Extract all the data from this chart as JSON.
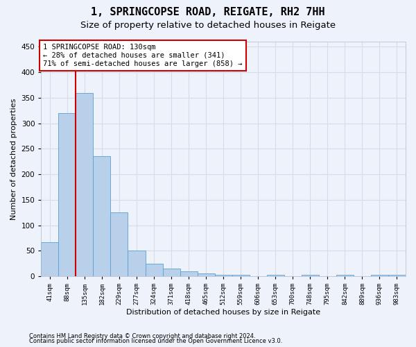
{
  "title1": "1, SPRINGCOPSE ROAD, REIGATE, RH2 7HH",
  "title2": "Size of property relative to detached houses in Reigate",
  "xlabel": "Distribution of detached houses by size in Reigate",
  "ylabel": "Number of detached properties",
  "footnote1": "Contains HM Land Registry data © Crown copyright and database right 2024.",
  "footnote2": "Contains public sector information licensed under the Open Government Licence v3.0.",
  "bar_labels": [
    "41sqm",
    "88sqm",
    "135sqm",
    "182sqm",
    "229sqm",
    "277sqm",
    "324sqm",
    "371sqm",
    "418sqm",
    "465sqm",
    "512sqm",
    "559sqm",
    "606sqm",
    "653sqm",
    "700sqm",
    "748sqm",
    "795sqm",
    "842sqm",
    "889sqm",
    "936sqm",
    "983sqm"
  ],
  "bar_values": [
    67,
    320,
    360,
    235,
    125,
    50,
    25,
    15,
    10,
    6,
    3,
    3,
    0,
    3,
    0,
    3,
    0,
    3,
    0,
    3,
    3
  ],
  "bar_color": "#b8d0ea",
  "bar_edge_color": "#5a9fd4",
  "bar_width": 1.0,
  "vline_x_idx": 2,
  "vline_color": "#cc0000",
  "vline_linewidth": 1.5,
  "annotation_text1": "1 SPRINGCOPSE ROAD: 130sqm",
  "annotation_text2": "← 28% of detached houses are smaller (341)",
  "annotation_text3": "71% of semi-detached houses are larger (858) →",
  "annotation_box_color": "#cc0000",
  "ylim": [
    0,
    460
  ],
  "yticks": [
    0,
    50,
    100,
    150,
    200,
    250,
    300,
    350,
    400,
    450
  ],
  "background_color": "#eef2fa",
  "grid_color": "#d8dce8",
  "title_fontsize": 11,
  "subtitle_fontsize": 9.5,
  "axis_label_fontsize": 8,
  "tick_fontsize": 6.5,
  "annotation_fontsize": 7.5,
  "footnote_fontsize": 6
}
